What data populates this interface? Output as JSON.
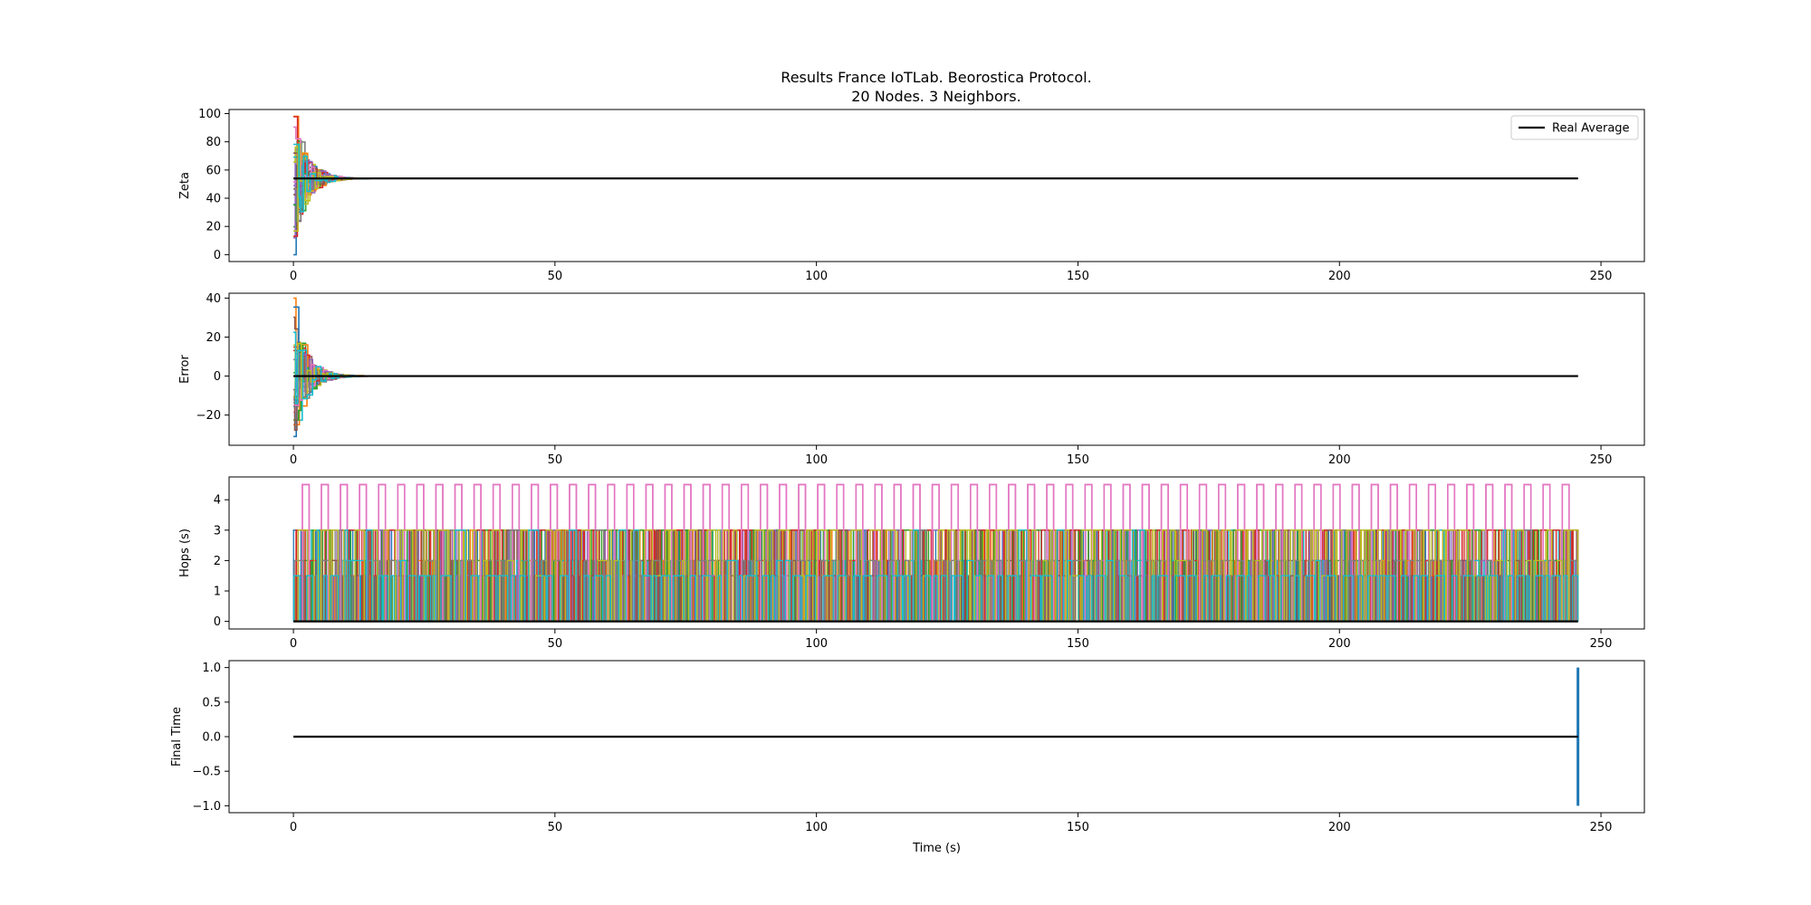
{
  "figure": {
    "title_line1": "Results France IoTLab. Beorostica Protocol.",
    "title_line2": "20 Nodes. 3 Neighbors."
  },
  "colors": {
    "series_palette": [
      "#1f77b4",
      "#ff7f0e",
      "#2ca02c",
      "#d62728",
      "#9467bd",
      "#8c564b",
      "#e377c2",
      "#7f7f7f",
      "#bcbd22",
      "#17becf"
    ],
    "reference_line": "#000000"
  },
  "chart_data": [
    {
      "type": "line",
      "id": "zeta",
      "title": "Results France IoTLab. Beorostica Protocol.\n20 Nodes. 3 Neighbors.",
      "xlabel": "",
      "ylabel": "Zeta",
      "xlim": [
        -12.3,
        258.3
      ],
      "ylim": [
        -4.9,
        102.9
      ],
      "xticks": [
        0,
        50,
        100,
        150,
        200,
        250
      ],
      "yticks": [
        0,
        20,
        40,
        60,
        80,
        100
      ],
      "grid": false,
      "legend": {
        "placement": "top-right",
        "entries": [
          "Real Average"
        ]
      },
      "node_count": 20,
      "reference": {
        "name": "Real Average",
        "x": [
          0,
          245.6
        ],
        "y": [
          54,
          54
        ]
      },
      "convergence": {
        "target": 54,
        "settle_time": 14,
        "initial_min": 0,
        "initial_max": 98
      }
    },
    {
      "type": "line",
      "id": "error",
      "xlabel": "",
      "ylabel": "Error",
      "xlim": [
        -12.3,
        258.3
      ],
      "ylim": [
        -35.5,
        42.5
      ],
      "xticks": [
        0,
        50,
        100,
        150,
        200,
        250
      ],
      "yticks": [
        -20,
        0,
        20,
        40
      ],
      "ytick_labels": [
        "−20",
        "0",
        "20",
        "40"
      ],
      "grid": false,
      "node_count": 20,
      "reference": {
        "x": [
          0,
          245.6
        ],
        "y": [
          0,
          0
        ]
      },
      "convergence": {
        "target": 0,
        "settle_time": 14,
        "initial_min": -31,
        "initial_max": 40
      }
    },
    {
      "type": "line",
      "id": "hops",
      "xlabel": "",
      "ylabel": "Hops (s)",
      "xlim": [
        -12.3,
        258.3
      ],
      "ylim": [
        -0.25,
        4.75
      ],
      "xticks": [
        0,
        50,
        100,
        150,
        200,
        250
      ],
      "yticks": [
        0,
        1,
        2,
        3,
        4
      ],
      "grid": false,
      "node_count": 20,
      "levels": [
        0,
        1.5,
        2,
        3,
        4.5
      ],
      "pulse_period": 3.65,
      "reference": {
        "x": [
          0,
          245.6
        ],
        "y": [
          0,
          0
        ]
      }
    },
    {
      "type": "line",
      "id": "final-time",
      "xlabel": "Time (s)",
      "ylabel": "Final Time",
      "xlim": [
        -12.3,
        258.3
      ],
      "ylim": [
        -1.1,
        1.1
      ],
      "xticks": [
        0,
        50,
        100,
        150,
        200,
        250
      ],
      "yticks": [
        -1.0,
        -0.5,
        0.0,
        0.5,
        1.0
      ],
      "ytick_labels": [
        "−1.0",
        "−0.5",
        "0.0",
        "0.5",
        "1.0"
      ],
      "grid": false,
      "reference": {
        "x": [
          0,
          245.6
        ],
        "y": [
          0,
          0
        ]
      },
      "final_marker": {
        "x": 245.6,
        "y_range": [
          -1,
          1
        ]
      }
    }
  ]
}
